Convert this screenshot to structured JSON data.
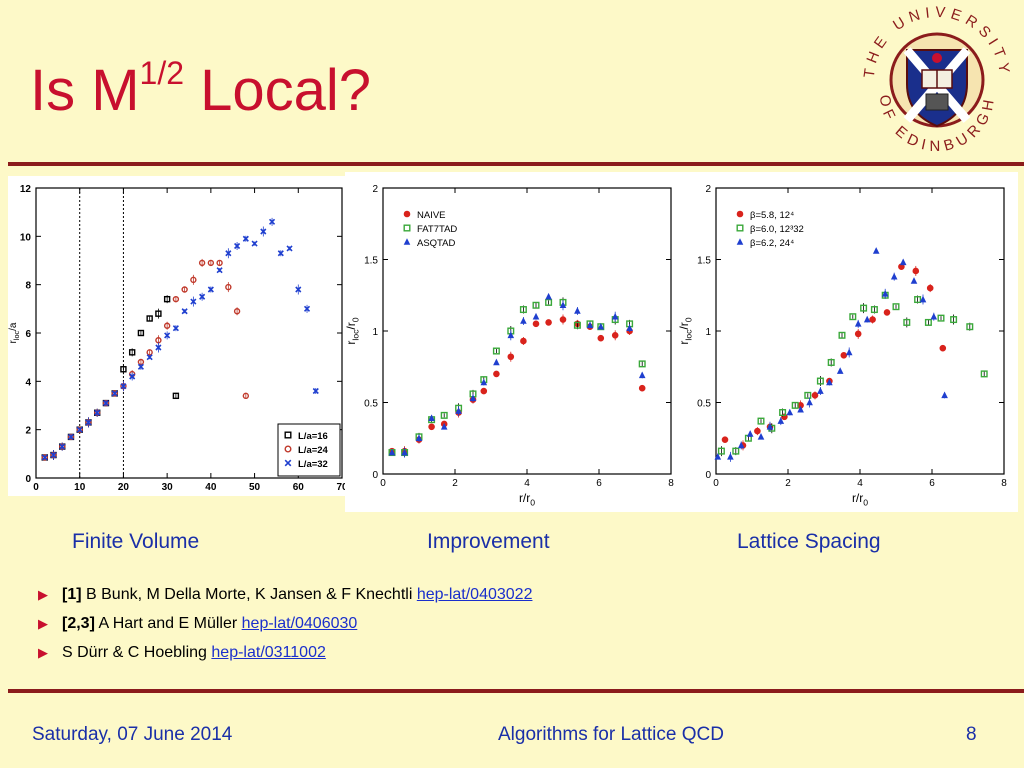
{
  "slide": {
    "title_prefix": "Is M",
    "title_sup": "1/2",
    "title_suffix": " Local?"
  },
  "logo": {
    "text_top": "THE UNIVERSITY",
    "text_bottom": "OF EDINBURGH",
    "colors": {
      "shield": "#c8102e",
      "saltire": "#1a2f8c",
      "ring": "#8b1c1c"
    }
  },
  "panels": {
    "finite_volume": {
      "caption": "Finite Volume"
    },
    "improvement": {
      "caption": "Improvement"
    },
    "lattice_spacing": {
      "caption": "Lattice Spacing"
    }
  },
  "references": [
    {
      "tag": "[1]",
      "text": " B Bunk, M Della Morte, K Jansen & F Knechtli ",
      "link": "hep-lat/0403022"
    },
    {
      "tag": "[2,3]",
      "text": " A Hart and E Müller ",
      "link": "hep-lat/0406030"
    },
    {
      "tag": "",
      "text": "S Dürr & C Hoebling ",
      "link": "hep-lat/0311002"
    }
  ],
  "footer": {
    "date": "Saturday, 07 June 2014",
    "course": "Algorithms for Lattice QCD",
    "page": "8"
  },
  "colors": {
    "title": "#c8102e",
    "rule": "#8b1c1c",
    "caption": "#1a2fa8",
    "link": "#1a2fcc",
    "background": "#fdf9c8"
  },
  "chart_data": [
    {
      "type": "scatter",
      "xlabel": "r/a",
      "ylabel": "r_loc/a",
      "xlim": [
        0,
        70
      ],
      "ylim": [
        0,
        12
      ],
      "xticks": [
        0,
        10,
        20,
        30,
        40,
        50,
        60,
        70
      ],
      "yticks": [
        0,
        2,
        4,
        6,
        8,
        10,
        12
      ],
      "vlines": [
        10,
        20
      ],
      "legend_position": "bottom-right",
      "series": [
        {
          "name": "L/a=16",
          "marker": "square",
          "color": "#000000",
          "x": [
            2,
            4,
            6,
            8,
            10,
            12,
            14,
            16,
            18,
            20,
            22,
            24,
            26,
            28,
            30,
            32
          ],
          "y": [
            0.85,
            0.95,
            1.3,
            1.7,
            2.0,
            2.3,
            2.7,
            3.1,
            3.5,
            4.5,
            5.2,
            6.0,
            6.6,
            6.8,
            7.4,
            3.4
          ]
        },
        {
          "name": "L/a=24",
          "marker": "circle",
          "color": "#c0392b",
          "x": [
            2,
            4,
            6,
            8,
            10,
            12,
            14,
            16,
            18,
            20,
            22,
            24,
            26,
            28,
            30,
            32,
            34,
            36,
            38,
            40,
            42,
            44,
            46,
            48
          ],
          "y": [
            0.85,
            0.95,
            1.3,
            1.7,
            2.0,
            2.3,
            2.7,
            3.1,
            3.5,
            3.8,
            4.3,
            4.8,
            5.2,
            5.7,
            6.3,
            7.4,
            7.8,
            8.2,
            8.9,
            8.9,
            8.9,
            7.9,
            6.9,
            3.4
          ]
        },
        {
          "name": "L/a=32",
          "marker": "x",
          "color": "#1f3fcf",
          "x": [
            2,
            4,
            6,
            8,
            10,
            12,
            14,
            16,
            18,
            20,
            22,
            24,
            26,
            28,
            30,
            32,
            34,
            36,
            38,
            40,
            42,
            44,
            46,
            48,
            50,
            52,
            54,
            56,
            58,
            60,
            62,
            64
          ],
          "y": [
            0.85,
            0.95,
            1.3,
            1.7,
            2.0,
            2.3,
            2.7,
            3.1,
            3.5,
            3.8,
            4.2,
            4.6,
            5.0,
            5.4,
            5.9,
            6.2,
            6.9,
            7.3,
            7.5,
            7.8,
            8.6,
            9.3,
            9.6,
            9.9,
            9.7,
            10.2,
            10.6,
            9.3,
            9.5,
            7.8,
            7.0,
            3.6
          ]
        }
      ]
    },
    {
      "type": "scatter",
      "xlabel": "r/r_0",
      "ylabel": "r_loc/r_0",
      "xlim": [
        0,
        8
      ],
      "ylim": [
        0,
        2
      ],
      "xticks": [
        0,
        2,
        4,
        6,
        8
      ],
      "yticks": [
        0,
        0.5,
        1,
        1.5,
        2
      ],
      "legend_position": "top-left",
      "series": [
        {
          "name": "NAIVE",
          "marker": "circle",
          "color": "#d9231c",
          "x": [
            0.25,
            0.6,
            1.0,
            1.35,
            1.7,
            2.1,
            2.5,
            2.8,
            3.15,
            3.55,
            3.9,
            4.25,
            4.6,
            5.0,
            5.4,
            5.75,
            6.05,
            6.45,
            6.85,
            7.2
          ],
          "y": [
            0.16,
            0.16,
            0.24,
            0.33,
            0.35,
            0.43,
            0.52,
            0.58,
            0.7,
            0.82,
            0.93,
            1.05,
            1.06,
            1.08,
            1.05,
            1.03,
            0.95,
            0.97,
            1.0,
            0.6
          ]
        },
        {
          "name": "FAT7TAD",
          "marker": "square",
          "color": "#3aa83a",
          "x": [
            0.25,
            0.6,
            1.0,
            1.35,
            1.7,
            2.1,
            2.5,
            2.8,
            3.15,
            3.55,
            3.9,
            4.25,
            4.6,
            5.0,
            5.4,
            5.75,
            6.05,
            6.45,
            6.85,
            7.2
          ],
          "y": [
            0.15,
            0.15,
            0.26,
            0.38,
            0.41,
            0.46,
            0.56,
            0.66,
            0.86,
            1.0,
            1.15,
            1.18,
            1.2,
            1.2,
            1.04,
            1.05,
            1.03,
            1.08,
            1.05,
            0.77
          ]
        },
        {
          "name": "ASQTAD",
          "marker": "triangle",
          "color": "#1f3fcf",
          "x": [
            0.25,
            0.6,
            1.0,
            1.35,
            1.7,
            2.1,
            2.5,
            2.8,
            3.15,
            3.55,
            3.9,
            4.25,
            4.6,
            5.0,
            5.4,
            5.75,
            6.05,
            6.45,
            6.85,
            7.2
          ],
          "y": [
            0.15,
            0.15,
            0.25,
            0.39,
            0.33,
            0.44,
            0.53,
            0.64,
            0.78,
            0.97,
            1.07,
            1.1,
            1.24,
            1.18,
            1.14,
            1.04,
            1.03,
            1.1,
            1.02,
            0.69
          ]
        }
      ]
    },
    {
      "type": "scatter",
      "xlabel": "r/r_0",
      "ylabel": "r_loc/r_0",
      "xlim": [
        0,
        8
      ],
      "ylim": [
        0,
        2
      ],
      "xticks": [
        0,
        2,
        4,
        6,
        8
      ],
      "yticks": [
        0,
        0.5,
        1,
        1.5,
        2
      ],
      "legend_position": "top-left",
      "series": [
        {
          "name": "β=5.8, 12⁴",
          "marker": "circle",
          "color": "#d9231c",
          "x": [
            0.25,
            0.75,
            1.15,
            1.5,
            1.9,
            2.35,
            2.75,
            3.15,
            3.55,
            3.95,
            4.35,
            4.75,
            5.15,
            5.55,
            5.95,
            6.3
          ],
          "y": [
            0.24,
            0.2,
            0.3,
            0.33,
            0.4,
            0.48,
            0.55,
            0.65,
            0.83,
            0.98,
            1.08,
            1.13,
            1.45,
            1.42,
            1.3,
            0.88
          ]
        },
        {
          "name": "β=6.0, 12³32",
          "marker": "square",
          "color": "#3aa83a",
          "x": [
            0.15,
            0.55,
            0.9,
            1.25,
            1.55,
            1.85,
            2.2,
            2.55,
            2.9,
            3.2,
            3.5,
            3.8,
            4.1,
            4.4,
            4.7,
            5.0,
            5.3,
            5.6,
            5.9,
            6.25,
            6.6,
            7.05,
            7.45
          ],
          "y": [
            0.16,
            0.16,
            0.25,
            0.37,
            0.32,
            0.43,
            0.48,
            0.55,
            0.65,
            0.78,
            0.97,
            1.1,
            1.16,
            1.15,
            1.25,
            1.17,
            1.06,
            1.22,
            1.06,
            1.09,
            1.08,
            1.03,
            0.7
          ]
        },
        {
          "name": "β=6.2, 24⁴",
          "marker": "triangle",
          "color": "#1f3fcf",
          "x": [
            0.05,
            0.4,
            0.7,
            0.95,
            1.25,
            1.5,
            1.8,
            2.05,
            2.35,
            2.6,
            2.9,
            3.15,
            3.45,
            3.7,
            3.95,
            4.2,
            4.45,
            4.7,
            4.95,
            5.2,
            5.5,
            5.75,
            6.05,
            6.35
          ],
          "y": [
            0.12,
            0.12,
            0.2,
            0.28,
            0.26,
            0.33,
            0.37,
            0.43,
            0.45,
            0.5,
            0.58,
            0.64,
            0.72,
            0.85,
            1.05,
            1.08,
            1.56,
            1.26,
            1.38,
            1.48,
            1.35,
            1.22,
            1.1,
            0.55
          ]
        }
      ]
    }
  ]
}
